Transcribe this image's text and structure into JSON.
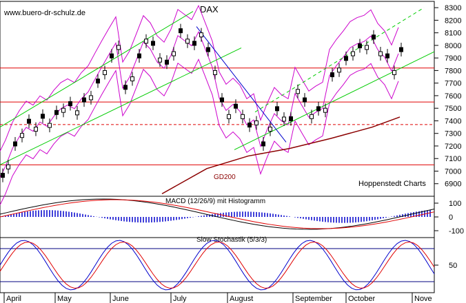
{
  "chart_data": [
    {
      "type": "candlestick",
      "title": "DAX",
      "watermark": "www.buero-dr-schulz.de",
      "source_label": "Hoppenstedt Charts",
      "ylim": [
        6800,
        8350
      ],
      "yticks": [
        "8300",
        "8200",
        "8100",
        "8000",
        "7900",
        "7800",
        "7700",
        "7600",
        "7500",
        "7400",
        "7300",
        "7200",
        "7100",
        "7000",
        "6900"
      ],
      "x_months": [
        "April",
        "May",
        "June",
        "July",
        "August",
        "September",
        "October",
        "Nove"
      ],
      "close_path": [
        [
          0,
          6950
        ],
        [
          8,
          7050
        ],
        [
          18,
          7200
        ],
        [
          28,
          7300
        ],
        [
          38,
          7380
        ],
        [
          48,
          7350
        ],
        [
          58,
          7420
        ],
        [
          68,
          7380
        ],
        [
          78,
          7450
        ],
        [
          88,
          7500
        ],
        [
          98,
          7520
        ],
        [
          108,
          7480
        ],
        [
          118,
          7550
        ],
        [
          128,
          7600
        ],
        [
          138,
          7700
        ],
        [
          148,
          7800
        ],
        [
          158,
          7900
        ],
        [
          168,
          8000
        ],
        [
          178,
          7650
        ],
        [
          188,
          7750
        ],
        [
          198,
          7900
        ],
        [
          208,
          8050
        ],
        [
          218,
          8000
        ],
        [
          228,
          7900
        ],
        [
          238,
          7850
        ],
        [
          248,
          7950
        ],
        [
          258,
          8100
        ],
        [
          268,
          8050
        ],
        [
          278,
          8000
        ],
        [
          288,
          8100
        ],
        [
          298,
          7950
        ],
        [
          308,
          7800
        ],
        [
          318,
          7550
        ],
        [
          328,
          7450
        ],
        [
          338,
          7500
        ],
        [
          348,
          7450
        ],
        [
          358,
          7350
        ],
        [
          368,
          7400
        ],
        [
          378,
          7200
        ],
        [
          388,
          7350
        ],
        [
          398,
          7480
        ],
        [
          408,
          7430
        ],
        [
          418,
          7400
        ],
        [
          428,
          7650
        ],
        [
          438,
          7550
        ],
        [
          448,
          7450
        ],
        [
          458,
          7480
        ],
        [
          468,
          7500
        ],
        [
          478,
          7750
        ],
        [
          488,
          7820
        ],
        [
          498,
          7880
        ],
        [
          508,
          7950
        ],
        [
          518,
          7980
        ],
        [
          528,
          8000
        ],
        [
          538,
          8050
        ],
        [
          548,
          7950
        ],
        [
          558,
          7900
        ],
        [
          568,
          7800
        ],
        [
          578,
          7950
        ]
      ],
      "moving_average": {
        "label": "GD200",
        "points": [
          [
            235,
            6820
          ],
          [
            300,
            7020
          ],
          [
            360,
            7120
          ],
          [
            420,
            7180
          ],
          [
            480,
            7260
          ],
          [
            540,
            7350
          ],
          [
            580,
            7430
          ]
        ]
      },
      "horizontal_lines": [
        {
          "value": 7820,
          "style": "solid",
          "color": "#e00000"
        },
        {
          "value": 7550,
          "style": "solid",
          "color": "#e00000"
        },
        {
          "value": 7370,
          "style": "dashed",
          "color": "#e00000"
        },
        {
          "value": 7050,
          "style": "solid",
          "color": "#e00000"
        }
      ],
      "colors": {
        "price": "#000000",
        "bands": "#cc00cc",
        "trend": "#00cc00",
        "downtrend": "#0000cc",
        "lines": "#e00000",
        "ma": "#8b0000"
      }
    },
    {
      "type": "macd",
      "title": "MACD (12/26/9) mit Histogramm",
      "ylim": [
        -150,
        150
      ],
      "yticks": [
        "100",
        "0",
        "-100"
      ],
      "colors": {
        "macd": "#000000",
        "signal": "#e00000",
        "histogram": "#0000cc"
      }
    },
    {
      "type": "stochastic",
      "title": "Slow Stochastik (5/3/3)",
      "ylim": [
        0,
        100
      ],
      "yticks": [
        "50"
      ],
      "levels": [
        80,
        20
      ],
      "colors": {
        "k": "#0000cc",
        "d": "#e00000",
        "level": "#000080"
      }
    }
  ]
}
